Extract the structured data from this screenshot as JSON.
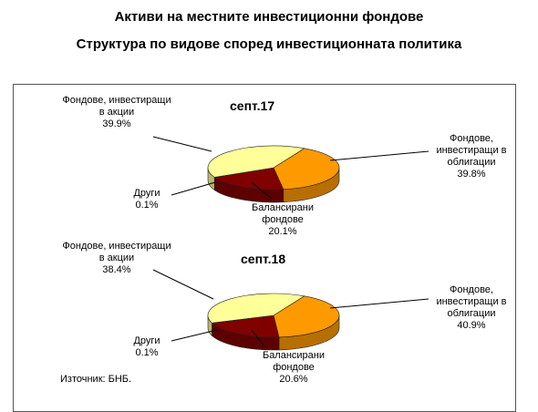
{
  "title": "Активи на местните инвестиционни фондове",
  "subtitle": "Структура по видове според инвестиционната политика",
  "source": "Източник: БНБ.",
  "colors": {
    "bonds": "#ff9900",
    "balanced": "#800000",
    "other": "#333333",
    "equity": "#ffff99"
  },
  "chart_data": [
    {
      "type": "pie",
      "title": "септ.17",
      "slices": [
        {
          "key": "bonds",
          "label": "Фондове, инвестиращи в облигации",
          "value_label": "39.8%",
          "value": 39.8
        },
        {
          "key": "balanced",
          "label": "Балансирани фондове",
          "value_label": "20.1%",
          "value": 20.1
        },
        {
          "key": "other",
          "label": "Други",
          "value_label": "0.1%",
          "value": 0.1
        },
        {
          "key": "equity",
          "label": "Фондове, инвестиращи в акции",
          "value_label": "39.9%",
          "value": 39.9
        }
      ]
    },
    {
      "type": "pie",
      "title": "септ.18",
      "slices": [
        {
          "key": "bonds",
          "label": "Фондове, инвестиращи в облигации",
          "value_label": "40.9%",
          "value": 40.9
        },
        {
          "key": "balanced",
          "label": "Балансирани фондове",
          "value_label": "20.6%",
          "value": 20.6
        },
        {
          "key": "other",
          "label": "Други",
          "value_label": "0.1%",
          "value": 0.1
        },
        {
          "key": "equity",
          "label": "Фондове, инвестиращи в акции",
          "value_label": "38.4%",
          "value": 38.4
        }
      ]
    }
  ]
}
